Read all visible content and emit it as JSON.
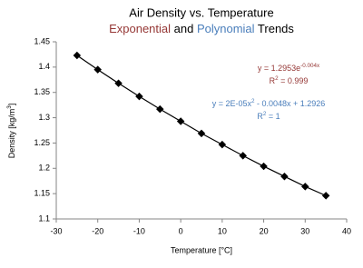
{
  "chart_data": {
    "type": "line",
    "title": "Air Density vs. Temperature",
    "subtitle": [
      {
        "text": "Exponential",
        "color": "#953735"
      },
      {
        "text": " and ",
        "color": "#000000"
      },
      {
        "text": "Polynomial",
        "color": "#4a7ebb"
      },
      {
        "text": " Trends",
        "color": "#000000"
      }
    ],
    "x_label": "Temperature [°C]",
    "y_label": [
      "Density [kg/m",
      {
        "sup": "3"
      },
      "]"
    ],
    "x": [
      -25,
      -20,
      -15,
      -10,
      -5,
      0,
      5,
      10,
      15,
      20,
      25,
      30,
      35
    ],
    "series": [
      {
        "color": "#000000",
        "values": [
          1.423,
          1.395,
          1.368,
          1.342,
          1.317,
          1.293,
          1.269,
          1.247,
          1.225,
          1.204,
          1.184,
          1.164,
          1.146
        ]
      }
    ],
    "annotations": [
      {
        "color": "#953735",
        "segments": [
          "y = 1.2953e",
          {
            "sup": "-0.004x"
          }
        ]
      },
      {
        "color": "#953735",
        "segments": [
          "R",
          {
            "sup": "2"
          },
          " = 0.999"
        ]
      },
      {
        "color": "#4a7ebb",
        "segments": [
          "y = 2E-05x",
          {
            "sup": "2"
          },
          " - 0.0048x + 1.2926"
        ]
      },
      {
        "color": "#4a7ebb",
        "segments": [
          "R",
          {
            "sup": "2"
          },
          " = 1"
        ]
      }
    ],
    "xlim": [
      -30,
      40
    ],
    "xticks": [
      -30,
      -20,
      -10,
      0,
      10,
      20,
      30,
      40
    ],
    "ylim": [
      1.1,
      1.45
    ],
    "yticks": [
      1.1,
      1.15,
      1.2,
      1.25,
      1.3,
      1.35,
      1.4,
      1.45
    ],
    "grid": false,
    "markers": true
  }
}
